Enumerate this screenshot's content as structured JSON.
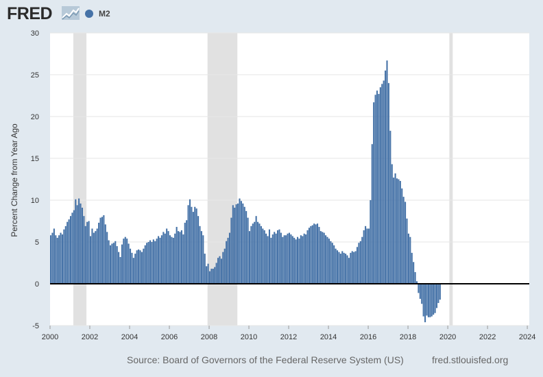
{
  "header": {
    "logo_text": "FRED",
    "logo_icon": "trend-line-icon"
  },
  "legend": {
    "label": "M2",
    "color": "#4572a7"
  },
  "footer": {
    "source": "Source: Board of Governors of the Federal Reserve System (US)",
    "site": "fred.stlouisfed.org"
  },
  "colors": {
    "background": "#e1e9f0",
    "plot_background": "#ffffff",
    "bar": "#4572a7",
    "recession": "#e1e1e1",
    "grid": "#e6e6e6",
    "zero_line": "#000000"
  },
  "chart_data": {
    "type": "bar",
    "title": "",
    "xlabel": "",
    "ylabel": "Percent Change from Year Ago",
    "xlim": [
      2000,
      2024.1
    ],
    "ylim": [
      -5,
      30
    ],
    "yticks": [
      -5,
      0,
      5,
      10,
      15,
      20,
      25,
      30
    ],
    "ytick_labels": [
      "-5",
      "0",
      "5",
      "10",
      "15",
      "20",
      "25",
      "30"
    ],
    "xticks": [
      2000,
      2002,
      2004,
      2006,
      2008,
      2010,
      2012,
      2014,
      2016,
      2018,
      2020,
      2022,
      2024
    ],
    "xtick_labels": [
      "2000",
      "2002",
      "2004",
      "2006",
      "2008",
      "2010",
      "2012",
      "2014",
      "2016",
      "2018",
      "2020",
      "2022",
      "2024"
    ],
    "grid": true,
    "recessions": [
      [
        2001.17,
        2001.83
      ],
      [
        2007.92,
        2009.42
      ],
      [
        2020.08,
        2020.25
      ]
    ],
    "series": [
      {
        "name": "M2",
        "x_start": 2000.0,
        "x_step": 0.0833,
        "values": [
          5.8,
          6.1,
          6.6,
          5.8,
          5.5,
          5.8,
          6.1,
          5.9,
          6.5,
          6.9,
          7.4,
          7.7,
          8.1,
          8.5,
          8.8,
          10.1,
          9.4,
          10.2,
          9.6,
          9.1,
          8.1,
          6.9,
          7.4,
          7.5,
          5.7,
          6.6,
          6.1,
          6.3,
          6.6,
          7.3,
          7.9,
          8.0,
          8.2,
          7.1,
          6.2,
          5.2,
          4.6,
          4.8,
          4.9,
          5.1,
          4.5,
          3.8,
          3.2,
          4.7,
          5.4,
          5.6,
          5.4,
          4.8,
          4.2,
          3.7,
          3.1,
          3.6,
          4.0,
          4.1,
          4.0,
          3.8,
          4.2,
          4.6,
          4.9,
          5.0,
          5.2,
          5.0,
          5.3,
          5.1,
          5.4,
          5.7,
          5.5,
          5.8,
          6.2,
          6.0,
          6.6,
          6.3,
          5.8,
          5.6,
          5.5,
          6.0,
          6.8,
          6.3,
          6.2,
          6.4,
          5.9,
          7.3,
          7.6,
          9.4,
          10.1,
          9.2,
          8.6,
          9.2,
          9.0,
          8.1,
          6.9,
          6.3,
          5.8,
          3.6,
          2.1,
          2.4,
          1.5,
          1.8,
          1.8,
          2.0,
          2.5,
          3.1,
          3.3,
          3.0,
          3.8,
          4.2,
          5.1,
          5.5,
          6.1,
          7.9,
          9.4,
          9.1,
          9.5,
          9.6,
          10.2,
          9.9,
          9.6,
          9.2,
          8.7,
          7.9,
          6.3,
          6.9,
          7.2,
          7.4,
          8.1,
          7.4,
          7.2,
          6.9,
          6.6,
          6.4,
          6.0,
          5.7,
          6.5,
          5.5,
          5.9,
          6.2,
          6.0,
          6.4,
          6.5,
          6.1,
          5.6,
          5.8,
          5.8,
          6.0,
          6.1,
          5.9,
          5.7,
          5.5,
          5.3,
          5.6,
          5.4,
          5.8,
          5.7,
          6.0,
          5.9,
          6.4,
          6.7,
          6.9,
          7.0,
          7.2,
          7.1,
          7.2,
          6.8,
          6.3,
          6.2,
          6.1,
          5.8,
          5.6,
          5.4,
          5.1,
          4.9,
          4.6,
          4.2,
          4.0,
          3.8,
          3.6,
          3.9,
          3.7,
          3.6,
          3.4,
          3.1,
          3.7,
          3.9,
          3.8,
          3.9,
          4.4,
          4.9,
          5.1,
          5.6,
          6.4,
          6.9,
          6.6,
          6.6,
          10.0,
          16.7,
          21.7,
          22.6,
          23.1,
          22.7,
          23.5,
          23.9,
          24.3,
          25.5,
          26.7,
          24.0,
          18.3,
          14.3,
          12.7,
          13.2,
          12.6,
          12.5,
          12.3,
          11.4,
          10.4,
          9.8,
          7.8,
          6.0,
          5.6,
          3.7,
          2.6,
          1.4,
          0.3,
          -1.1,
          -1.8,
          -2.4,
          -3.9,
          -4.6,
          -3.8,
          -4.0,
          -4.0,
          -3.9,
          -3.7,
          -3.5,
          -2.9,
          -2.3,
          -1.9
        ]
      }
    ]
  }
}
